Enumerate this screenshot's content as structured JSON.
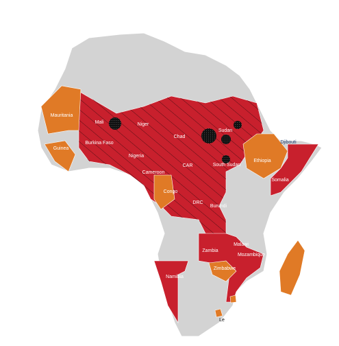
{
  "map": {
    "labels": [
      "Mauritania",
      "Mali",
      "Niger",
      "Chad",
      "Sudan",
      "Djibouti",
      "Guinea",
      "Burkina Faso",
      "Nigeria",
      "Ethiopia",
      "Cameroon",
      "CAR",
      "South Sudan",
      "Somalia",
      "Congo",
      "DRC",
      "Burundi",
      "Zambia",
      "Malawi",
      "Mozambique",
      "Zimbabwe",
      "Namibia",
      "Le"
    ]
  }
}
